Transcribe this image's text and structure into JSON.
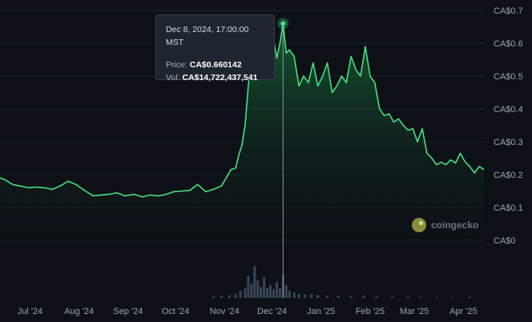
{
  "tooltip": {
    "date": "Dec 8, 2024, 17:00:00 MST",
    "price_label": "Price:",
    "price_value": "CA$0.660142",
    "vol_label": "Vol:",
    "vol_value": "CA$14,722,437,541"
  },
  "watermark": {
    "text": "coingecko"
  },
  "colors": {
    "line": "#4ade80",
    "fill": "#166534",
    "volume": "#3b4556",
    "background": "#0d1117",
    "crosshair": "#8b949e"
  },
  "chart_data": {
    "type": "area",
    "title": "",
    "xlabel": "",
    "ylabel": "",
    "ylim": [
      0,
      0.7
    ],
    "y_ticks": [
      "CA$0.7",
      "CA$0.6",
      "CA$0.5",
      "CA$0.4",
      "CA$0.3",
      "CA$0.2",
      "CA$0.1",
      "CA$0"
    ],
    "y_tick_values": [
      0.7,
      0.6,
      0.5,
      0.4,
      0.3,
      0.2,
      0.1,
      0
    ],
    "x_ticks": [
      "Jul '24",
      "Aug '24",
      "Sep '24",
      "Oct '24",
      "Nov '24",
      "Dec '24",
      "Jan '25",
      "Feb '25",
      "Mar '25",
      "Apr '25"
    ],
    "x_tick_dates": [
      "2024-07-01",
      "2024-08-01",
      "2024-09-01",
      "2024-10-01",
      "2024-11-01",
      "2024-12-01",
      "2025-01-01",
      "2025-02-01",
      "2025-03-01",
      "2025-04-01"
    ],
    "x_range": [
      "2024-06-12",
      "2025-04-14"
    ],
    "grid": true,
    "highlight": {
      "date": "2024-12-08",
      "price": 0.660142
    },
    "series": [
      {
        "dates": [
          "2024-06-12",
          "2024-06-15",
          "2024-06-20",
          "2024-06-25",
          "2024-06-30",
          "2024-07-05",
          "2024-07-10",
          "2024-07-15",
          "2024-07-20",
          "2024-07-25",
          "2024-07-30",
          "2024-08-05",
          "2024-08-10",
          "2024-08-15",
          "2024-08-20",
          "2024-08-25",
          "2024-08-30",
          "2024-09-05",
          "2024-09-10",
          "2024-09-15",
          "2024-09-20",
          "2024-09-25",
          "2024-09-30",
          "2024-10-05",
          "2024-10-10",
          "2024-10-15",
          "2024-10-20",
          "2024-10-25",
          "2024-10-30",
          "2024-11-02",
          "2024-11-05",
          "2024-11-08",
          "2024-11-10",
          "2024-11-12",
          "2024-11-14",
          "2024-11-16",
          "2024-11-18",
          "2024-11-20",
          "2024-11-22",
          "2024-11-24",
          "2024-11-26",
          "2024-11-28",
          "2024-11-30",
          "2024-12-02",
          "2024-12-04",
          "2024-12-06",
          "2024-12-08",
          "2024-12-10",
          "2024-12-12",
          "2024-12-15",
          "2024-12-18",
          "2024-12-21",
          "2024-12-24",
          "2024-12-27",
          "2024-12-30",
          "2025-01-02",
          "2025-01-05",
          "2025-01-08",
          "2025-01-11",
          "2025-01-14",
          "2025-01-17",
          "2025-01-20",
          "2025-01-23",
          "2025-01-26",
          "2025-01-29",
          "2025-02-01",
          "2025-02-04",
          "2025-02-07",
          "2025-02-10",
          "2025-02-13",
          "2025-02-16",
          "2025-02-19",
          "2025-02-22",
          "2025-02-25",
          "2025-02-28",
          "2025-03-03",
          "2025-03-06",
          "2025-03-09",
          "2025-03-12",
          "2025-03-15",
          "2025-03-18",
          "2025-03-21",
          "2025-03-24",
          "2025-03-27",
          "2025-03-30",
          "2025-04-02",
          "2025-04-05",
          "2025-04-08",
          "2025-04-11",
          "2025-04-14"
        ],
        "values": [
          0.19,
          0.185,
          0.17,
          0.165,
          0.16,
          0.162,
          0.16,
          0.155,
          0.165,
          0.18,
          0.17,
          0.15,
          0.135,
          0.138,
          0.14,
          0.145,
          0.135,
          0.14,
          0.132,
          0.138,
          0.135,
          0.14,
          0.148,
          0.15,
          0.152,
          0.17,
          0.148,
          0.155,
          0.165,
          0.19,
          0.215,
          0.22,
          0.26,
          0.29,
          0.35,
          0.47,
          0.56,
          0.545,
          0.58,
          0.595,
          0.565,
          0.6,
          0.58,
          0.61,
          0.555,
          0.6,
          0.66,
          0.57,
          0.58,
          0.56,
          0.47,
          0.5,
          0.48,
          0.54,
          0.47,
          0.5,
          0.54,
          0.45,
          0.47,
          0.5,
          0.48,
          0.56,
          0.52,
          0.5,
          0.59,
          0.5,
          0.48,
          0.4,
          0.38,
          0.385,
          0.36,
          0.37,
          0.35,
          0.335,
          0.34,
          0.3,
          0.34,
          0.265,
          0.25,
          0.23,
          0.238,
          0.23,
          0.245,
          0.235,
          0.265,
          0.24,
          0.225,
          0.205,
          0.225,
          0.215
        ]
      }
    ],
    "volume": {
      "dates": [
        "2024-10-25",
        "2024-10-30",
        "2024-11-04",
        "2024-11-08",
        "2024-11-11",
        "2024-11-14",
        "2024-11-16",
        "2024-11-18",
        "2024-11-20",
        "2024-11-22",
        "2024-11-24",
        "2024-11-26",
        "2024-11-28",
        "2024-11-30",
        "2024-12-02",
        "2024-12-04",
        "2024-12-06",
        "2024-12-08",
        "2024-12-10",
        "2024-12-12",
        "2024-12-15",
        "2024-12-18",
        "2024-12-22",
        "2024-12-26",
        "2024-12-30",
        "2025-01-05",
        "2025-01-12",
        "2025-01-20",
        "2025-01-28",
        "2025-02-05",
        "2025-02-15",
        "2025-02-25",
        "2025-03-05",
        "2025-03-15",
        "2025-03-25",
        "2025-04-05"
      ],
      "values": [
        1.0,
        1.2,
        1.8,
        2.5,
        4.5,
        6.0,
        14.0,
        9.0,
        20.0,
        11.0,
        7.0,
        13.0,
        6.0,
        8.0,
        5.5,
        10.0,
        6.0,
        14.7,
        8.0,
        4.5,
        3.5,
        2.5,
        2.0,
        2.5,
        1.8,
        1.5,
        1.2,
        1.0,
        1.4,
        1.1,
        0.9,
        0.8,
        0.7,
        0.6,
        0.5,
        0.8
      ],
      "max": 25
    }
  }
}
